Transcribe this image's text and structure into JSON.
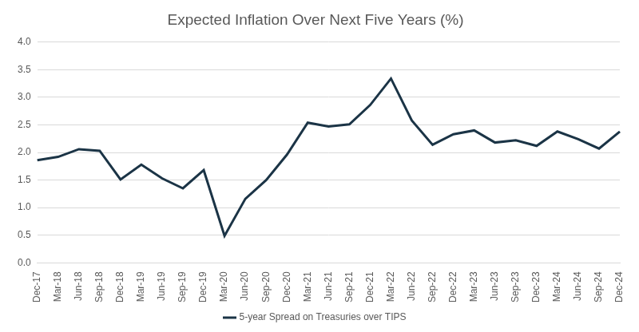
{
  "chart_data": {
    "type": "line",
    "title": "Expected Inflation Over Next Five Years (%)",
    "categories": [
      "Dec-17",
      "Mar-18",
      "Jun-18",
      "Sep-18",
      "Dec-18",
      "Mar-19",
      "Jun-19",
      "Sep-19",
      "Dec-19",
      "Mar-20",
      "Jun-20",
      "Sep-20",
      "Dec-20",
      "Mar-21",
      "Jun-21",
      "Sep-21",
      "Dec-21",
      "Mar-22",
      "Jun-22",
      "Sep-22",
      "Dec-22",
      "Mar-23",
      "Jun-23",
      "Sep-23",
      "Dec-23",
      "Mar-24",
      "Jun-24",
      "Sep-24",
      "Dec-24"
    ],
    "series": [
      {
        "name": "5-year Spread on Treasuries over TIPS",
        "color": "#1b3446",
        "values": [
          1.86,
          1.92,
          2.06,
          2.03,
          1.51,
          1.78,
          1.53,
          1.35,
          1.68,
          0.49,
          1.16,
          1.5,
          1.96,
          2.54,
          2.47,
          2.51,
          2.86,
          3.34,
          2.58,
          2.14,
          2.33,
          2.4,
          2.18,
          2.22,
          2.12,
          2.38,
          2.24,
          2.07,
          2.38
        ]
      }
    ],
    "ylim": [
      0,
      4
    ],
    "yticks": [
      {
        "value": 0,
        "label": "0.0"
      },
      0.5,
      {
        "value": 1,
        "label": "1.0"
      },
      1.5,
      {
        "value": 2,
        "label": "2.0"
      },
      2.5,
      {
        "value": 3,
        "label": "3.0"
      },
      3.5,
      {
        "value": 4,
        "label": "4.0"
      }
    ],
    "grid": true,
    "legend": "bottom"
  }
}
